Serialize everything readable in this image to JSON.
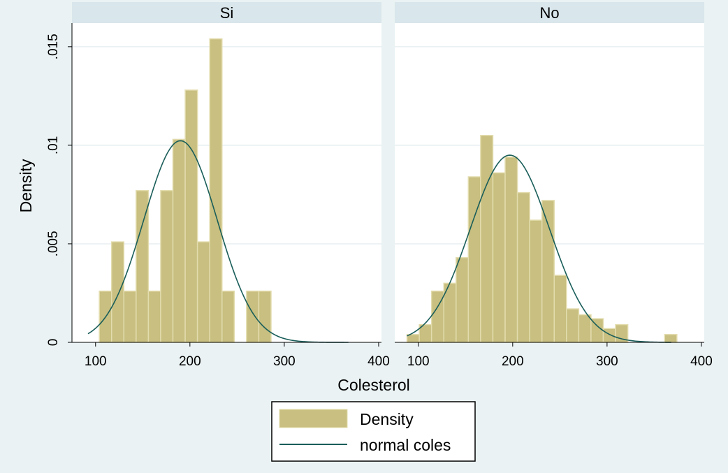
{
  "chart_data": [
    {
      "type": "bar",
      "panel_title": "Si",
      "bins": [
        {
          "x0": 104,
          "x1": 117,
          "density": 0.0026
        },
        {
          "x0": 117,
          "x1": 130,
          "density": 0.0051
        },
        {
          "x0": 130,
          "x1": 143,
          "density": 0.0026
        },
        {
          "x0": 143,
          "x1": 156,
          "density": 0.0077
        },
        {
          "x0": 156,
          "x1": 169,
          "density": 0.0026
        },
        {
          "x0": 169,
          "x1": 182,
          "density": 0.0077
        },
        {
          "x0": 182,
          "x1": 195,
          "density": 0.0103
        },
        {
          "x0": 195,
          "x1": 208,
          "density": 0.0128
        },
        {
          "x0": 208,
          "x1": 221,
          "density": 0.0051
        },
        {
          "x0": 221,
          "x1": 234,
          "density": 0.0154
        },
        {
          "x0": 234,
          "x1": 247,
          "density": 0.0026
        },
        {
          "x0": 247,
          "x1": 260,
          "density": 0.0
        },
        {
          "x0": 260,
          "x1": 273,
          "density": 0.0026
        },
        {
          "x0": 273,
          "x1": 286,
          "density": 0.0026
        }
      ],
      "normal_curve": {
        "mean": 190,
        "sd": 39,
        "x_range": [
          92,
          368
        ]
      }
    },
    {
      "type": "bar",
      "panel_title": "No",
      "bins": [
        {
          "x0": 88,
          "x1": 101,
          "density": 0.0004
        },
        {
          "x0": 101,
          "x1": 114,
          "density": 0.0009
        },
        {
          "x0": 114,
          "x1": 127,
          "density": 0.0026
        },
        {
          "x0": 127,
          "x1": 140,
          "density": 0.003
        },
        {
          "x0": 140,
          "x1": 153,
          "density": 0.0043
        },
        {
          "x0": 153,
          "x1": 166,
          "density": 0.0084
        },
        {
          "x0": 166,
          "x1": 179,
          "density": 0.0105
        },
        {
          "x0": 179,
          "x1": 192,
          "density": 0.0086
        },
        {
          "x0": 192,
          "x1": 205,
          "density": 0.0094
        },
        {
          "x0": 205,
          "x1": 218,
          "density": 0.0076
        },
        {
          "x0": 218,
          "x1": 231,
          "density": 0.0062
        },
        {
          "x0": 231,
          "x1": 244,
          "density": 0.0072
        },
        {
          "x0": 244,
          "x1": 257,
          "density": 0.0034
        },
        {
          "x0": 257,
          "x1": 270,
          "density": 0.0017
        },
        {
          "x0": 270,
          "x1": 283,
          "density": 0.0014
        },
        {
          "x0": 283,
          "x1": 296,
          "density": 0.0012
        },
        {
          "x0": 296,
          "x1": 309,
          "density": 0.0007
        },
        {
          "x0": 309,
          "x1": 322,
          "density": 0.0009
        },
        {
          "x0": 322,
          "x1": 335,
          "density": 0.0
        },
        {
          "x0": 335,
          "x1": 348,
          "density": 0.0
        },
        {
          "x0": 348,
          "x1": 361,
          "density": 0.0
        },
        {
          "x0": 361,
          "x1": 374,
          "density": 0.0004
        }
      ],
      "normal_curve": {
        "mean": 197,
        "sd": 42,
        "x_range": [
          88,
          368
        ]
      }
    }
  ],
  "axes": {
    "xlabel": "Colesterol",
    "ylabel": "Density",
    "xlim": [
      75,
      403
    ],
    "ylim": [
      0,
      0.0162
    ],
    "xticks": [
      100,
      200,
      300,
      400
    ],
    "xtick_labels": [
      "100",
      "200",
      "300",
      "400"
    ],
    "yticks": [
      0,
      0.005,
      0.01,
      0.015
    ],
    "ytick_labels": [
      "0",
      ".005",
      ".01",
      ".015"
    ],
    "grid": true
  },
  "legend": {
    "position": "bottom-center",
    "items": [
      {
        "label": "Density",
        "kind": "bar"
      },
      {
        "label": "normal coles",
        "kind": "line"
      }
    ]
  },
  "colors": {
    "background": "#eaf2f3",
    "plot_background": "#ffffff",
    "strip": "#d9e6eb",
    "bar_fill": "#c8bf80",
    "bar_edge": "#e3dcae",
    "curve": "#1a5e5a",
    "grid": "#e8eef0"
  }
}
